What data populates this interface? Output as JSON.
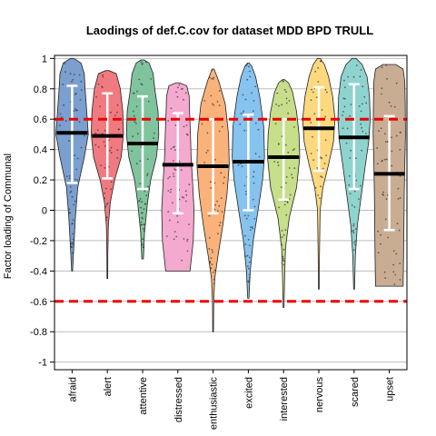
{
  "chart_data": {
    "type": "violin",
    "title": "Laodings of def.C.cov for dataset MDD BPD TRULL",
    "xlabel": "",
    "ylabel": "Factor loading of Communal",
    "ylim": [
      -1.05,
      1.02
    ],
    "yticks": [
      -1,
      -0.8,
      -0.6,
      -0.4,
      -0.2,
      0,
      0.2,
      0.4,
      0.6,
      0.8,
      1
    ],
    "ytick_labels": [
      "-1",
      "-0.8",
      "-0.6",
      "-0.4",
      "-0.2",
      "0",
      "0.2",
      "0.4",
      "0.6",
      "0.8",
      "1"
    ],
    "grid": true,
    "reference_lines": [
      0.6,
      -0.6
    ],
    "reference_line_color": "#ee0000",
    "categories": [
      "afraid",
      "alert",
      "attentive",
      "distressed",
      "enthusiastic",
      "excited",
      "interested",
      "nervous",
      "scared",
      "upset"
    ],
    "colors": [
      "#7b9fcf",
      "#f07a80",
      "#7fc49c",
      "#f4a9cf",
      "#f9b27a",
      "#86c3ee",
      "#c7de8a",
      "#fcd97e",
      "#8fd3cf",
      "#c9ad93"
    ],
    "series": [
      {
        "category": "afraid",
        "median": 0.51,
        "whisker_low": 0.18,
        "whisker_high": 0.82,
        "min": -0.4,
        "max": 1.0,
        "density": [
          [
            -0.4,
            0.03
          ],
          [
            -0.25,
            0.1
          ],
          [
            -0.05,
            0.2
          ],
          [
            0.15,
            0.35
          ],
          [
            0.35,
            0.75
          ],
          [
            0.5,
            1.0
          ],
          [
            0.65,
            0.9
          ],
          [
            0.8,
            0.8
          ],
          [
            0.9,
            0.75
          ],
          [
            0.97,
            0.55
          ],
          [
            1.0,
            0.1
          ]
        ]
      },
      {
        "category": "alert",
        "median": 0.49,
        "whisker_low": 0.21,
        "whisker_high": 0.77,
        "min": -0.45,
        "max": 0.92,
        "density": [
          [
            -0.45,
            0.02
          ],
          [
            -0.3,
            0.03
          ],
          [
            -0.1,
            0.06
          ],
          [
            0.05,
            0.18
          ],
          [
            0.2,
            0.45
          ],
          [
            0.35,
            0.85
          ],
          [
            0.5,
            1.0
          ],
          [
            0.65,
            0.95
          ],
          [
            0.8,
            0.8
          ],
          [
            0.9,
            0.55
          ],
          [
            0.92,
            0.1
          ]
        ]
      },
      {
        "category": "attentive",
        "median": 0.44,
        "whisker_low": 0.14,
        "whisker_high": 0.75,
        "min": -0.32,
        "max": 0.99,
        "density": [
          [
            -0.32,
            0.05
          ],
          [
            -0.15,
            0.12
          ],
          [
            0.05,
            0.3
          ],
          [
            0.2,
            0.5
          ],
          [
            0.35,
            0.85
          ],
          [
            0.5,
            1.0
          ],
          [
            0.65,
            0.95
          ],
          [
            0.8,
            0.75
          ],
          [
            0.9,
            0.65
          ],
          [
            0.97,
            0.4
          ],
          [
            0.99,
            0.1
          ]
        ]
      },
      {
        "category": "distressed",
        "median": 0.3,
        "whisker_low": -0.02,
        "whisker_high": 0.64,
        "min": -0.4,
        "max": 0.84,
        "density": [
          [
            -0.4,
            0.75
          ],
          [
            -0.2,
            0.95
          ],
          [
            0.0,
            1.0
          ],
          [
            0.2,
            0.9
          ],
          [
            0.35,
            0.82
          ],
          [
            0.5,
            0.78
          ],
          [
            0.65,
            0.72
          ],
          [
            0.75,
            0.7
          ],
          [
            0.82,
            0.55
          ],
          [
            0.84,
            0.1
          ]
        ]
      },
      {
        "category": "enthusiastic",
        "median": 0.29,
        "whisker_low": -0.02,
        "whisker_high": 0.6,
        "min": -0.8,
        "max": 0.93,
        "density": [
          [
            -0.8,
            0.02
          ],
          [
            -0.6,
            0.04
          ],
          [
            -0.45,
            0.1
          ],
          [
            -0.3,
            0.3
          ],
          [
            -0.1,
            0.6
          ],
          [
            0.1,
            0.85
          ],
          [
            0.3,
            1.0
          ],
          [
            0.5,
            0.95
          ],
          [
            0.7,
            0.75
          ],
          [
            0.85,
            0.35
          ],
          [
            0.93,
            0.06
          ]
        ]
      },
      {
        "category": "excited",
        "median": 0.32,
        "whisker_low": 0.0,
        "whisker_high": 0.63,
        "min": -0.58,
        "max": 0.97,
        "density": [
          [
            -0.58,
            0.04
          ],
          [
            -0.4,
            0.12
          ],
          [
            -0.2,
            0.3
          ],
          [
            0.0,
            0.6
          ],
          [
            0.2,
            0.88
          ],
          [
            0.35,
            1.0
          ],
          [
            0.55,
            0.95
          ],
          [
            0.75,
            0.7
          ],
          [
            0.88,
            0.45
          ],
          [
            0.95,
            0.2
          ],
          [
            0.97,
            0.05
          ]
        ]
      },
      {
        "category": "interested",
        "median": 0.35,
        "whisker_low": 0.07,
        "whisker_high": 0.6,
        "min": -0.64,
        "max": 0.86,
        "density": [
          [
            -0.64,
            0.03
          ],
          [
            -0.45,
            0.06
          ],
          [
            -0.25,
            0.12
          ],
          [
            -0.05,
            0.35
          ],
          [
            0.15,
            0.8
          ],
          [
            0.35,
            1.0
          ],
          [
            0.5,
            0.95
          ],
          [
            0.65,
            0.8
          ],
          [
            0.78,
            0.55
          ],
          [
            0.84,
            0.3
          ],
          [
            0.86,
            0.06
          ]
        ]
      },
      {
        "category": "nervous",
        "median": 0.54,
        "whisker_low": 0.26,
        "whisker_high": 0.81,
        "min": -0.52,
        "max": 1.0,
        "density": [
          [
            -0.52,
            0.02
          ],
          [
            -0.3,
            0.04
          ],
          [
            0.0,
            0.08
          ],
          [
            0.15,
            0.25
          ],
          [
            0.3,
            0.6
          ],
          [
            0.45,
            0.9
          ],
          [
            0.6,
            1.0
          ],
          [
            0.75,
            0.85
          ],
          [
            0.88,
            0.6
          ],
          [
            0.96,
            0.35
          ],
          [
            1.0,
            0.08
          ]
        ]
      },
      {
        "category": "scared",
        "median": 0.48,
        "whisker_low": 0.14,
        "whisker_high": 0.83,
        "min": -0.52,
        "max": 1.0,
        "density": [
          [
            -0.52,
            0.03
          ],
          [
            -0.3,
            0.08
          ],
          [
            -0.1,
            0.2
          ],
          [
            0.1,
            0.45
          ],
          [
            0.3,
            0.7
          ],
          [
            0.45,
            0.9
          ],
          [
            0.6,
            1.0
          ],
          [
            0.75,
            0.95
          ],
          [
            0.88,
            0.8
          ],
          [
            0.96,
            0.5
          ],
          [
            1.0,
            0.12
          ]
        ]
      },
      {
        "category": "upset",
        "median": 0.24,
        "whisker_low": -0.13,
        "whisker_high": 0.62,
        "min": -0.5,
        "max": 0.96,
        "density": [
          [
            -0.5,
            0.85
          ],
          [
            -0.3,
            0.88
          ],
          [
            -0.1,
            0.9
          ],
          [
            0.1,
            0.92
          ],
          [
            0.3,
            0.95
          ],
          [
            0.5,
            1.0
          ],
          [
            0.7,
            0.98
          ],
          [
            0.85,
            0.95
          ],
          [
            0.93,
            0.85
          ],
          [
            0.96,
            0.4
          ]
        ]
      }
    ]
  }
}
